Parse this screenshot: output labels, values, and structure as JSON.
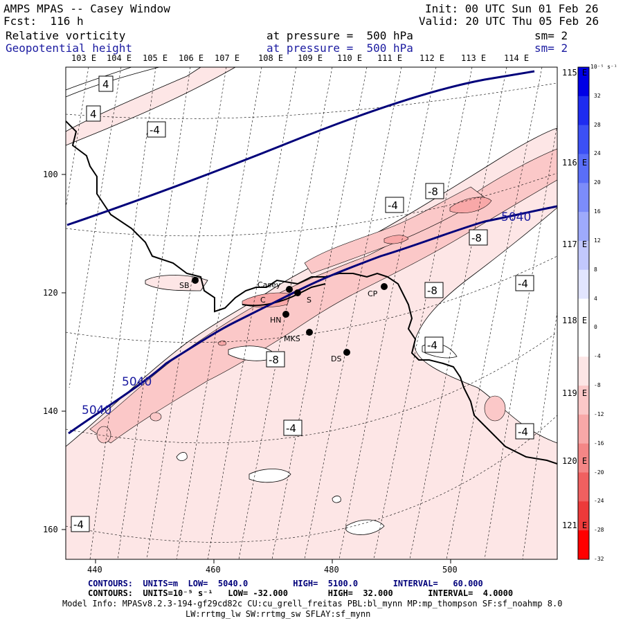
{
  "header": {
    "title": "AMPS MPAS -- Casey Window",
    "forecast": "Fcst:  116 h",
    "init": "Init: 00 UTC Sun 01 Feb 26",
    "valid": "Valid: 20 UTC Thu 05 Feb 26",
    "field1_name": "Relative vorticity",
    "field1_level": "at pressure =  500 hPa",
    "field1_sm": "sm= 2",
    "field2_name": "Geopotential height",
    "field2_level": "at pressure =  500 hPa",
    "field2_sm": "sm= 2"
  },
  "axes": {
    "top_labels": [
      "103 E",
      "104 E",
      "105 E",
      "106 E",
      "107 E",
      "108 E",
      "109 E",
      "110 E",
      "111 E",
      "112 E",
      "113 E",
      "114 E"
    ],
    "right_labels": [
      "115 E",
      "116 E",
      "117 E",
      "118 E",
      "119 E",
      "120 E",
      "121 E"
    ],
    "left_labels": [
      "100",
      "120",
      "140",
      "160"
    ],
    "bottom_labels": [
      "440",
      "460",
      "480",
      "500"
    ]
  },
  "colorbar": {
    "unit": "10⁻⁵ s⁻¹",
    "levels": [
      "32",
      "28",
      "24",
      "20",
      "16",
      "12",
      "8",
      "4",
      "0",
      "-4",
      "-8",
      "-12",
      "-16",
      "-20",
      "-24",
      "-28",
      "-32"
    ],
    "colors": [
      "#0000e6",
      "#1e2cf0",
      "#3c50f5",
      "#5a6ef8",
      "#7c8cfa",
      "#9eaafc",
      "#c2c8fd",
      "#e2e5fe",
      "#ffffff",
      "#ffffff",
      "#fde6e6",
      "#fbc8c8",
      "#f8a8a8",
      "#f48686",
      "#f06060",
      "#ec3a3a",
      "#ff0000"
    ]
  },
  "map": {
    "stations": [
      "SB",
      "Casey",
      "C",
      "S",
      "HN",
      "MKS",
      "CP",
      "DS"
    ],
    "vort_labels": [
      "4",
      "4",
      "-4",
      "-4",
      "-8",
      "-8",
      "-4",
      "-8",
      "-4",
      "-8",
      "-4",
      "-4",
      "-4"
    ],
    "height_labels": [
      "5040",
      "5040",
      "5040"
    ]
  },
  "footer": {
    "line1": "CONTOURS:  UNITS=m  LOW=  5040.0         HIGH=  5100.0       INTERVAL=   60.000",
    "line2": "CONTOURS:  UNITS=10⁻⁵ s⁻¹   LOW= -32.000        HIGH=  32.000       INTERVAL=  4.0000",
    "line3": "Model Info: MPASv8.2.3-194-gf29cd82c CU:cu_grell_freitas PBL:bl_mynn MP:mp_thompson SF:sf_noahmp 8.0",
    "line4": "LW:rrtmg_lw SW:rrtmg_sw SFLAY:sf_mynn"
  }
}
